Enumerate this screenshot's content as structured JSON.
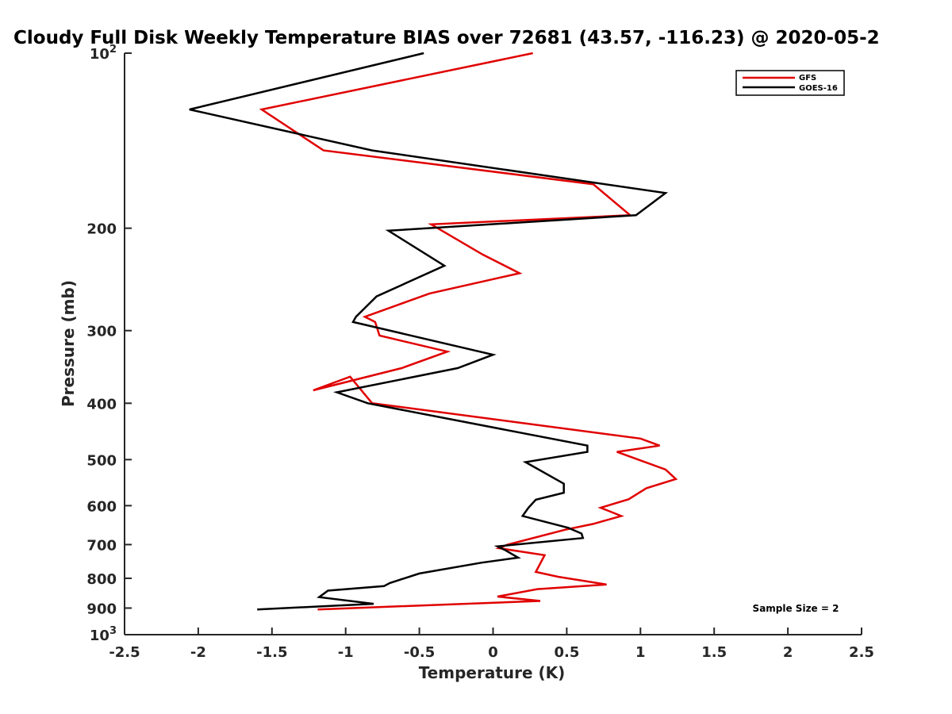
{
  "chart_data": {
    "type": "line",
    "title": "Cloudy Full Disk Weekly Temperature BIAS over 72681 (43.57, -116.23) @ 2020-05-2",
    "xlabel": "Temperature (K)",
    "ylabel": "Pressure (mb)",
    "xlim": [
      -2.5,
      2.5
    ],
    "ylim": [
      100,
      1000
    ],
    "y_scale": "log",
    "y_reversed": true,
    "grid": false,
    "legend_position": "top-right",
    "x_ticks": [
      -2.5,
      -2,
      -1.5,
      -1,
      -0.5,
      0,
      0.5,
      1,
      1.5,
      2,
      2.5
    ],
    "x_tick_labels": [
      "-2.5",
      "-2",
      "-1.5",
      "-1",
      "-0.5",
      "0",
      "0.5",
      "1",
      "1.5",
      "2",
      "2.5"
    ],
    "y_ticks": [
      100,
      200,
      300,
      400,
      500,
      600,
      700,
      800,
      900,
      1000
    ],
    "y_tick_labels": [
      {
        "base": "10",
        "exp": "2"
      },
      {
        "base": "200"
      },
      {
        "base": "300"
      },
      {
        "base": "400"
      },
      {
        "base": "500"
      },
      {
        "base": "600"
      },
      {
        "base": "700"
      },
      {
        "base": "800"
      },
      {
        "base": "900"
      },
      {
        "base": "10",
        "exp": "3"
      }
    ],
    "annotation": "Sample Size = 2",
    "series": [
      {
        "name": "GFS",
        "color": "#e00000",
        "x": [
          0.27,
          -1.57,
          -1.15,
          0.68,
          0.93,
          -0.42,
          -0.07,
          0.18,
          -0.43,
          -0.87,
          -0.8,
          -0.77,
          -0.31,
          -0.62,
          -1.22,
          -0.97,
          -0.82,
          1,
          1.13,
          0.84,
          1.17,
          1.24,
          1.04,
          0.92,
          0.73,
          0.87,
          0.68,
          0.49,
          0.1,
          0.04,
          0.35,
          0.29,
          0.44,
          0.77,
          0.3,
          0.03,
          0.32,
          -1.19
        ],
        "y": [
          100,
          125,
          147,
          168,
          190,
          197,
          222,
          239,
          259,
          284,
          290,
          306,
          326,
          348,
          380,
          360,
          400,
          460,
          473,
          485,
          520,
          540,
          560,
          585,
          605,
          625,
          645,
          660,
          700,
          710,
          730,
          780,
          795,
          820,
          835,
          860,
          875,
          905
        ]
      },
      {
        "name": "GOES-16",
        "color": "#000000",
        "x": [
          -0.47,
          -2.06,
          -0.82,
          1.17,
          0.97,
          -0.71,
          -0.33,
          -0.79,
          -0.93,
          -0.95,
          0,
          -0.24,
          -1.06,
          -0.85,
          0.64,
          0.64,
          0.22,
          0.48,
          0.48,
          0.29,
          0.24,
          0.2,
          0.51,
          0.6,
          0.61,
          0.03,
          0.08,
          0.17,
          -0.08,
          -0.5,
          -0.7,
          -0.74,
          -1.12,
          -1.18,
          -0.81,
          -1.6
        ],
        "y": [
          100,
          125,
          147,
          174,
          190,
          202,
          232,
          262,
          284,
          290,
          330,
          348,
          383,
          400,
          473,
          485,
          505,
          550,
          570,
          586,
          605,
          625,
          655,
          670,
          682,
          705,
          715,
          737,
          752,
          785,
          815,
          825,
          840,
          862,
          885,
          905
        ]
      }
    ]
  }
}
